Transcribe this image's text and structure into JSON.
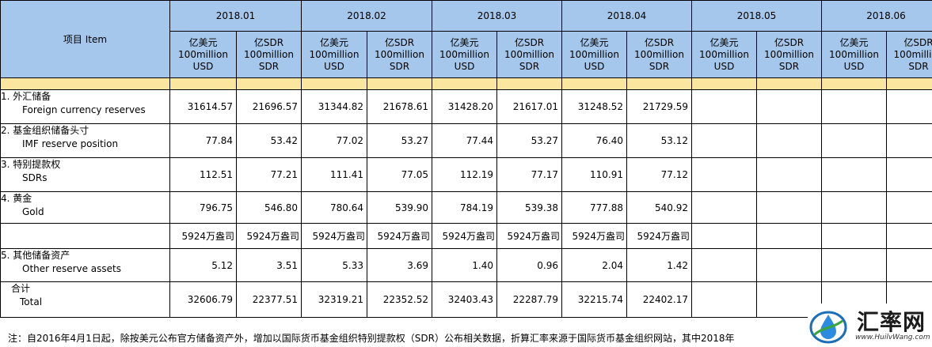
{
  "header": {
    "item_label": "项目  Item",
    "months": [
      "2018.01",
      "2018.02",
      "2018.03",
      "2018.04",
      "2018.05",
      "2018.06"
    ],
    "unit_usd": [
      "亿美元",
      "100million",
      "USD"
    ],
    "unit_sdr": [
      "亿SDR",
      "100million",
      "SDR"
    ]
  },
  "rows": [
    {
      "cn": "1.  外汇储备",
      "en": "Foreign currency reserves",
      "values": [
        "31614.57",
        "21696.57",
        "31344.82",
        "21678.61",
        "31428.20",
        "21617.01",
        "31248.52",
        "21729.59"
      ]
    },
    {
      "cn": "2.  基金组织储备头寸",
      "en": "IMF reserve position",
      "values": [
        "77.84",
        "53.42",
        "77.02",
        "53.27",
        "77.44",
        "53.27",
        "76.40",
        "53.12"
      ]
    },
    {
      "cn": "3.  特别提款权",
      "en": "SDRs",
      "values": [
        "112.51",
        "77.21",
        "111.41",
        "77.05",
        "112.19",
        "77.17",
        "110.91",
        "77.12"
      ]
    },
    {
      "cn": "4.  黄金",
      "en": "Gold",
      "values": [
        "796.75",
        "546.80",
        "780.64",
        "539.90",
        "784.19",
        "539.38",
        "777.88",
        "540.92"
      ]
    },
    {
      "cn": "",
      "en": "",
      "values": [
        "5924万盎司",
        "5924万盎司",
        "5924万盎司",
        "5924万盎司",
        "5924万盎司",
        "5924万盎司",
        "5924万盎司",
        "5924万盎司"
      ]
    },
    {
      "cn": "5.  其他储备资产",
      "en": "Other reserve assets",
      "values": [
        "5.12",
        "3.51",
        "5.33",
        "3.69",
        "1.40",
        "0.96",
        "2.04",
        "1.42"
      ]
    },
    {
      "cn": "合计",
      "en": "Total",
      "values": [
        "32606.79",
        "22377.51",
        "32319.21",
        "22352.52",
        "32403.43",
        "22287.79",
        "32215.74",
        "22402.17"
      ]
    }
  ],
  "note": "注：自2016年4月1日起，除按美元公布官方储备资产外，增加以国际货币基金组织特别提款权（SDR）公布相关数据，折算汇率来源于国际货币基金组织网站，其中2018年",
  "logo": {
    "name": "汇率网",
    "url": "www.HuilvWang.com",
    "icon": "water-drop-logo-icon"
  }
}
